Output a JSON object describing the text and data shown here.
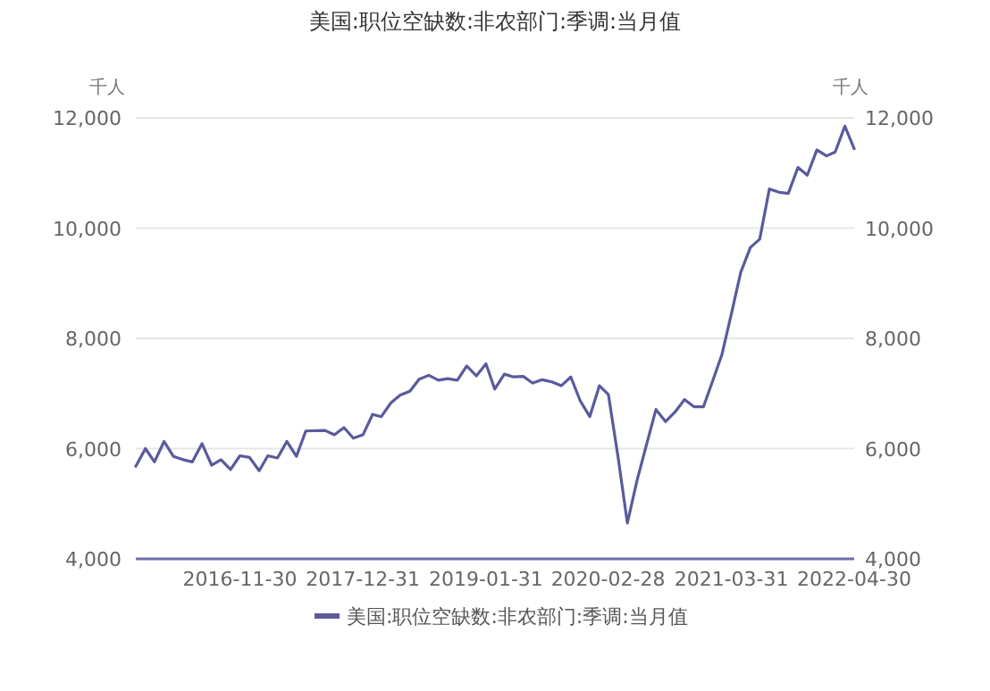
{
  "chart_data": {
    "type": "line",
    "title": "美国:职位空缺数:非农部门:季调:当月值",
    "ylabel": "千人",
    "y2label": "千人",
    "x": [
      "2015-12-31",
      "2016-01-31",
      "2016-02-29",
      "2016-03-31",
      "2016-04-30",
      "2016-05-31",
      "2016-06-30",
      "2016-07-31",
      "2016-08-31",
      "2016-09-30",
      "2016-10-31",
      "2016-11-30",
      "2016-12-31",
      "2017-01-31",
      "2017-02-28",
      "2017-03-31",
      "2017-04-30",
      "2017-05-31",
      "2017-06-30",
      "2017-08-31",
      "2017-09-30",
      "2017-10-31",
      "2017-11-30",
      "2017-12-31",
      "2018-01-31",
      "2018-02-28",
      "2018-03-31",
      "2018-04-30",
      "2018-05-31",
      "2018-06-30",
      "2018-07-31",
      "2018-08-31",
      "2018-09-30",
      "2018-10-31",
      "2018-11-30",
      "2018-12-31",
      "2019-01-31",
      "2019-02-28",
      "2019-03-31",
      "2019-04-30",
      "2019-05-31",
      "2019-06-30",
      "2019-07-31",
      "2019-08-31",
      "2019-09-30",
      "2019-10-31",
      "2019-11-30",
      "2019-12-31",
      "2020-01-31",
      "2020-02-29",
      "2020-03-31",
      "2020-04-30",
      "2020-05-31",
      "2020-06-30",
      "2020-07-31",
      "2020-08-31",
      "2020-09-30",
      "2020-10-31",
      "2020-11-30",
      "2020-12-31",
      "2021-01-31",
      "2021-02-28",
      "2021-03-31",
      "2021-04-30",
      "2021-05-31",
      "2021-06-30",
      "2021-07-31",
      "2021-08-31",
      "2021-09-30",
      "2021-10-31",
      "2021-11-30",
      "2021-12-31",
      "2022-01-31",
      "2022-02-28",
      "2022-03-31",
      "2022-04-30"
    ],
    "series": [
      {
        "name": "美国:职位空缺数:非农部门:季调:当月值",
        "color": "#5a5a9c",
        "values": [
          5680,
          6000,
          5760,
          6130,
          5860,
          5800,
          5760,
          6090,
          5700,
          5800,
          5620,
          5870,
          5840,
          5600,
          5870,
          5830,
          6130,
          5860,
          6320,
          6330,
          6250,
          6380,
          6190,
          6250,
          6620,
          6580,
          6830,
          6970,
          7040,
          7260,
          7330,
          7240,
          7270,
          7240,
          7500,
          7320,
          7540,
          7080,
          7350,
          7300,
          7310,
          7190,
          7250,
          7210,
          7140,
          7300,
          6870,
          6580,
          7140,
          6980,
          5850,
          4650,
          5420,
          6060,
          6710,
          6490,
          6660,
          6890,
          6760,
          6760,
          7250,
          7700,
          8450,
          9200,
          9650,
          9800,
          10710,
          10650,
          10630,
          11100,
          10960,
          11420,
          11310,
          11380,
          11850,
          11440
        ]
      }
    ],
    "xlim": [
      "2015-12-31",
      "2022-04-30"
    ],
    "xticks": [
      "2016-11-30",
      "2017-12-31",
      "2019-01-31",
      "2020-02-28",
      "2021-03-31",
      "2022-04-30"
    ],
    "ylim": [
      4000,
      12000
    ],
    "yticks": [
      {
        "value": 4000,
        "label": "4,000"
      },
      {
        "value": 6000,
        "label": "6,000"
      },
      {
        "value": 8000,
        "label": "8,000"
      },
      {
        "value": 10000,
        "label": "10,000"
      },
      {
        "value": 12000,
        "label": "12,000"
      }
    ],
    "y2lim": [
      4000,
      12000
    ],
    "y2ticks": [
      {
        "value": 4000,
        "label": "4,000"
      },
      {
        "value": 6000,
        "label": "6,000"
      },
      {
        "value": 8000,
        "label": "8,000"
      },
      {
        "value": 10000,
        "label": "10,000"
      },
      {
        "value": 12000,
        "label": "12,000"
      }
    ],
    "grid": "y",
    "legend": "bottom",
    "marker": "none",
    "line_style": "solid"
  }
}
